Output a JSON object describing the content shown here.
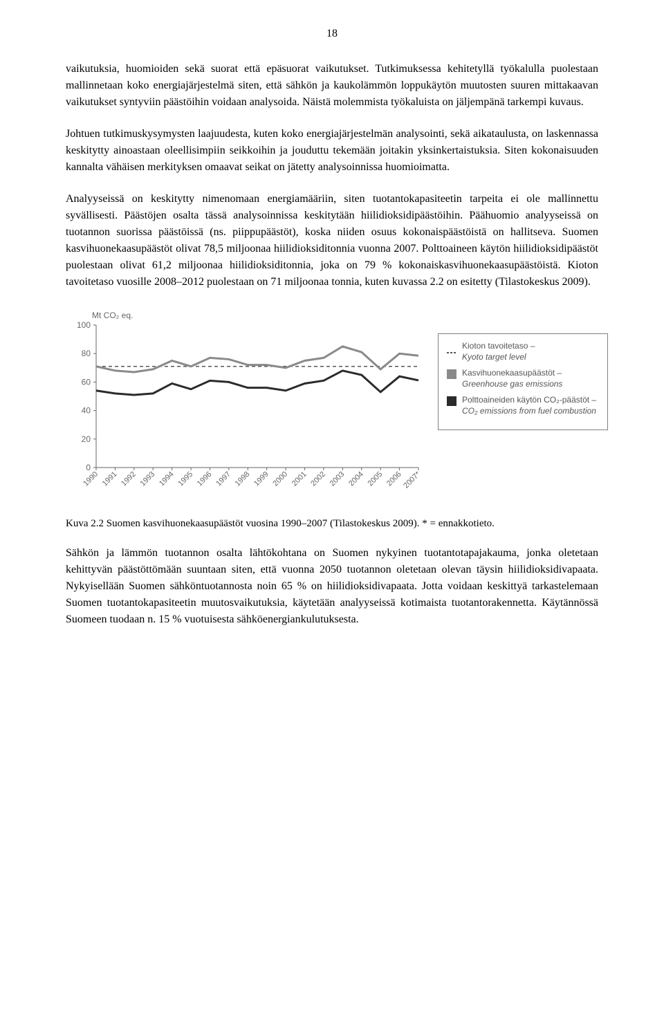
{
  "page_number": "18",
  "paragraphs": {
    "p1": "vaikutuksia, huomioiden sekä suorat että epäsuorat vaikutukset. Tutkimuksessa kehitetyllä työkalulla puolestaan mallinnetaan koko energiajärjestelmä siten, että sähkön ja kaukolämmön loppukäytön muutosten suuren mittakaavan vaikutukset syntyviin päästöihin voidaan analysoida. Näistä molemmista työkaluista on jäljempänä tarkempi kuvaus.",
    "p2": "Johtuen tutkimuskysymysten laajuudesta, kuten koko energiajärjestelmän analysointi, sekä aikataulusta, on laskennassa keskitytty ainoastaan oleellisimpiin seikkoihin ja jouduttu tekemään joitakin yksinkertaistuksia. Siten kokonaisuuden kannalta vähäisen merkityksen omaavat seikat on jätetty analysoinnissa huomioimatta.",
    "p3": "Analyyseissä on keskitytty nimenomaan energiamääriin, siten tuotantokapasiteetin tarpeita ei ole mallinnettu syvällisesti. Päästöjen osalta tässä analysoinnissa keskitytään hiilidioksidipäästöihin. Päähuomio analyyseissä on tuotannon suorissa päästöissä (ns. piippupäästöt), koska niiden osuus kokonaispäästöistä on hallitseva. Suomen kasvihuonekaasupäästöt olivat 78,5 miljoonaa hiilidioksiditonnia vuonna 2007. Polttoaineen käytön hiilidioksidipäästöt puolestaan olivat 61,2 miljoonaa hiilidioksiditonnia, joka on 79 % kokonaiskasvihuonekaasupäästöistä. Kioton tavoitetaso vuosille 2008–2012 puolestaan on 71 miljoonaa tonnia, kuten kuvassa 2.2 on esitetty (Tilastokeskus 2009).",
    "p4": "Sähkön ja lämmön tuotannon osalta lähtökohtana on Suomen nykyinen tuotantotapajakauma, jonka oletetaan kehittyvän päästöttömään suuntaan siten, että vuonna 2050 tuotannon oletetaan olevan täysin hiilidioksidivapaata. Nykyisellään Suomen sähköntuotannosta noin 65 % on hiilidioksidivapaata. Jotta voidaan keskittyä tarkastelemaan Suomen tuotantokapasiteetin muutosvaikutuksia, käytetään analyyseissä kotimaista tuotantorakennetta. Käytännössä Suomeen tuodaan n. 15 % vuotuisesta sähköenergiankulutuksesta."
  },
  "caption": "Kuva 2.2 Suomen kasvihuonekaasupäästöt vuosina 1990–2007 (Tilastokeskus 2009). * = ennakkotieto.",
  "chart": {
    "type": "line",
    "y_label": "Mt CO₂ eq.",
    "x_years": [
      "1990",
      "1991",
      "1992",
      "1993",
      "1994",
      "1995",
      "1996",
      "1997",
      "1998",
      "1999",
      "2000",
      "2001",
      "2002",
      "2003",
      "2004",
      "2005",
      "2006",
      "2007*"
    ],
    "ylim": [
      0,
      100
    ],
    "ytick_step": 20,
    "yticks": [
      0,
      20,
      40,
      60,
      80,
      100
    ],
    "background_color": "#ffffff",
    "axis_color": "#666666",
    "tick_font_size": 12,
    "tick_font_family": "Arial, Helvetica, sans-serif",
    "tick_color": "#666666",
    "series": {
      "kyoto": {
        "label_fi": "Kioton tavoitetaso –",
        "label_en": "Kyoto target level",
        "color": "#555555",
        "style": "dashed",
        "line_width": 1.5,
        "values": [
          71,
          71,
          71,
          71,
          71,
          71,
          71,
          71,
          71,
          71,
          71,
          71,
          71,
          71,
          71,
          71,
          71,
          71
        ]
      },
      "ghg": {
        "label_fi": "Kasvihuonekaasupäästöt –",
        "label_en": "Greenhouse gas emissions",
        "color": "#8a8a8a",
        "style": "solid",
        "line_width": 3,
        "values": [
          71,
          68,
          67,
          69,
          75,
          71,
          77,
          76,
          72,
          72,
          70,
          75,
          77,
          85,
          81,
          69,
          80,
          78.5
        ]
      },
      "fuel": {
        "label_fi": "Polttoaineiden käytön CO₂-päästöt –",
        "label_en": "CO₂ emissions from fuel combustion",
        "color": "#2b2b2b",
        "style": "solid",
        "line_width": 3,
        "values": [
          54,
          52,
          51,
          52,
          59,
          55,
          61,
          60,
          56,
          56,
          54,
          59,
          61,
          68,
          65,
          53,
          64,
          61.2
        ]
      }
    },
    "legend_swatches": {
      "ghg_color": "#8a8a8a",
      "fuel_color": "#2b2b2b"
    }
  }
}
